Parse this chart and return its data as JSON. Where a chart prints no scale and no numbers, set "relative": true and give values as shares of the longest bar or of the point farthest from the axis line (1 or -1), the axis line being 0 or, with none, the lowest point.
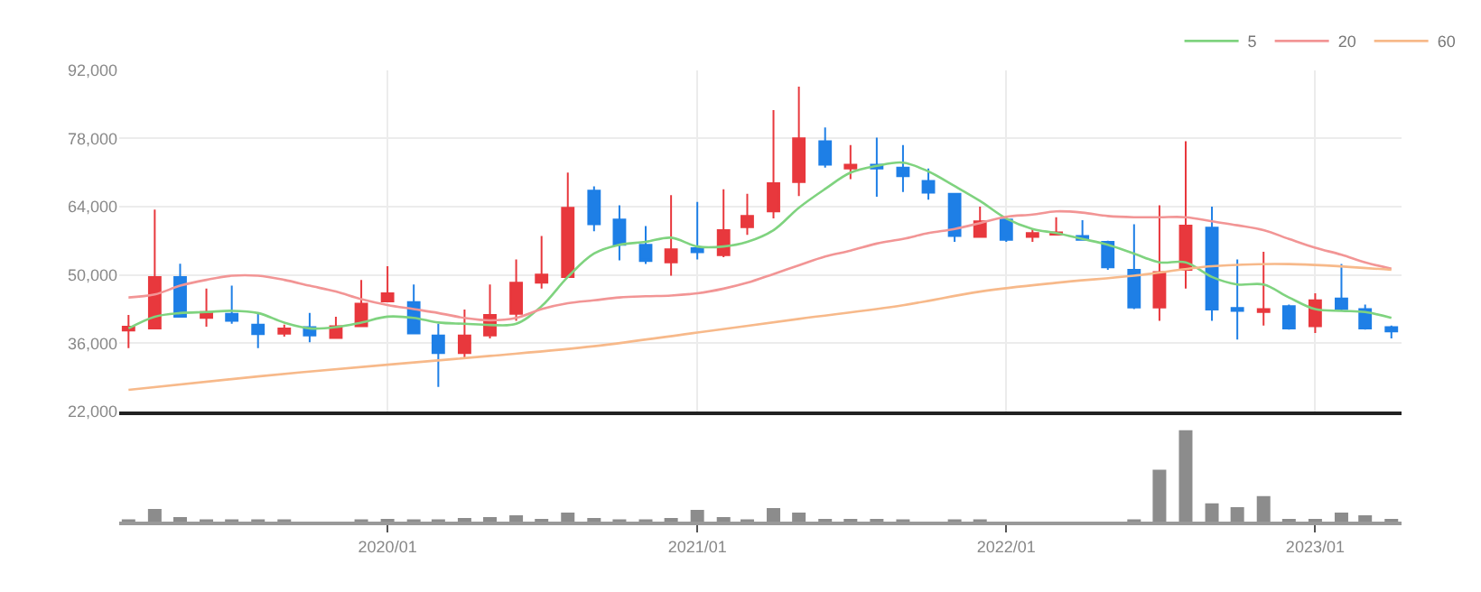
{
  "chart_data": [
    {
      "type": "candlestick",
      "x": [
        "2019-03",
        "2019-04",
        "2019-05",
        "2019-06",
        "2019-07",
        "2019-08",
        "2019-09",
        "2019-10",
        "2019-11",
        "2019-12",
        "2020-01",
        "2020-02",
        "2020-03",
        "2020-04",
        "2020-05",
        "2020-06",
        "2020-07",
        "2020-08",
        "2020-09",
        "2020-10",
        "2020-11",
        "2020-12",
        "2021-01",
        "2021-02",
        "2021-03",
        "2021-04",
        "2021-05",
        "2021-06",
        "2021-07",
        "2021-08",
        "2021-09",
        "2021-10",
        "2021-11",
        "2021-12",
        "2022-01",
        "2022-02",
        "2022-03",
        "2022-04",
        "2022-05",
        "2022-06",
        "2022-07",
        "2022-08",
        "2022-09",
        "2022-10",
        "2022-11",
        "2022-12",
        "2023-01",
        "2023-02",
        "2023-03",
        "2023-04"
      ],
      "ohlc": [
        [
          38600,
          41800,
          35000,
          39400
        ],
        [
          39050,
          63400,
          39050,
          49600
        ],
        [
          49600,
          52300,
          41450,
          41450
        ],
        [
          41200,
          47200,
          39400,
          42400
        ],
        [
          42050,
          47800,
          40000,
          40600
        ],
        [
          39800,
          42200,
          35000,
          37850
        ],
        [
          37950,
          39800,
          37350,
          39050
        ],
        [
          39300,
          42200,
          36200,
          37600
        ],
        [
          37100,
          41450,
          36900,
          39500
        ],
        [
          39500,
          49000,
          39300,
          44100
        ],
        [
          44600,
          51800,
          44600,
          46250
        ],
        [
          44450,
          48050,
          38000,
          38000
        ],
        [
          37600,
          40000,
          27050,
          34000
        ],
        [
          34000,
          42900,
          32800,
          37600
        ],
        [
          37600,
          48050,
          37000,
          41800
        ],
        [
          42050,
          53200,
          40600,
          48400
        ],
        [
          48400,
          58000,
          47200,
          50100
        ],
        [
          49600,
          71000,
          49600,
          63800
        ],
        [
          67300,
          68200,
          59000,
          60400
        ],
        [
          61400,
          64300,
          53000,
          56200
        ],
        [
          56200,
          60050,
          52250,
          52850
        ],
        [
          52600,
          66400,
          49850,
          55250
        ],
        [
          55500,
          65000,
          53200,
          54650
        ],
        [
          54050,
          67600,
          53650,
          59200
        ],
        [
          59800,
          66650,
          58250,
          62100
        ],
        [
          63050,
          83850,
          61600,
          68850
        ],
        [
          69050,
          88650,
          66200,
          78050
        ],
        [
          77450,
          80250,
          72050,
          72650
        ],
        [
          71850,
          76650,
          69650,
          72650
        ],
        [
          72650,
          78200,
          66050,
          71850
        ],
        [
          72050,
          76650,
          67050,
          70250
        ],
        [
          69300,
          71850,
          65450,
          66900
        ],
        [
          66650,
          66650,
          56800,
          58000
        ],
        [
          57800,
          64000,
          57800,
          61000
        ],
        [
          61400,
          61600,
          56800,
          57200
        ],
        [
          57800,
          59500,
          56800,
          58600
        ],
        [
          58300,
          61850,
          58250,
          58750
        ],
        [
          58000,
          61250,
          57200,
          57200
        ],
        [
          56800,
          57050,
          51050,
          51550
        ],
        [
          51050,
          60400,
          43000,
          43350
        ],
        [
          43350,
          64300,
          40600,
          50600
        ],
        [
          51050,
          77450,
          47200,
          60150
        ],
        [
          59700,
          64000,
          40600,
          42900
        ],
        [
          43250,
          53200,
          36750,
          42650
        ],
        [
          42400,
          54750,
          39650,
          43000
        ],
        [
          43600,
          43950,
          38800,
          39050
        ],
        [
          39500,
          46250,
          38100,
          44800
        ],
        [
          45200,
          52250,
          42650,
          43000
        ],
        [
          43000,
          43950,
          38800,
          39050
        ],
        [
          39300,
          39650,
          37000,
          38450
        ]
      ],
      "colors": [
        "#e8383d",
        "#e8383d",
        "#1e7fe6",
        "#e8383d",
        "#1e7fe6",
        "#1e7fe6",
        "#e8383d",
        "#1e7fe6",
        "#e8383d",
        "#e8383d",
        "#e8383d",
        "#1e7fe6",
        "#1e7fe6",
        "#e8383d",
        "#e8383d",
        "#e8383d",
        "#e8383d",
        "#e8383d",
        "#1e7fe6",
        "#1e7fe6",
        "#1e7fe6",
        "#e8383d",
        "#1e7fe6",
        "#e8383d",
        "#e8383d",
        "#e8383d",
        "#e8383d",
        "#1e7fe6",
        "#e8383d",
        "#1e7fe6",
        "#1e7fe6",
        "#1e7fe6",
        "#1e7fe6",
        "#e8383d",
        "#1e7fe6",
        "#e8383d",
        "#e8383d",
        "#1e7fe6",
        "#1e7fe6",
        "#1e7fe6",
        "#e8383d",
        "#e8383d",
        "#1e7fe6",
        "#1e7fe6",
        "#e8383d",
        "#1e7fe6",
        "#e8383d",
        "#1e7fe6",
        "#1e7fe6",
        "#1e7fe6"
      ],
      "series": [
        {
          "type": "line",
          "name": "5",
          "color": "#7fd37f",
          "values": [
            39050,
            41450,
            42200,
            42400,
            42650,
            42200,
            40250,
            39050,
            39300,
            40250,
            41450,
            41200,
            40250,
            40000,
            39750,
            40000,
            43600,
            49600,
            54400,
            56200,
            56800,
            57650,
            55850,
            55850,
            56800,
            59200,
            63800,
            67650,
            71000,
            72400,
            73050,
            71250,
            68250,
            65200,
            61600,
            59450,
            58600,
            57400,
            56200,
            54400,
            52600,
            52600,
            49600,
            48050,
            48050,
            45400,
            43000,
            42650,
            42400,
            41200
          ]
        },
        {
          "type": "line",
          "name": "20",
          "color": "#f29595",
          "values": [
            45400,
            46000,
            47800,
            49000,
            49850,
            49850,
            49000,
            47800,
            46600,
            45050,
            43850,
            43000,
            42200,
            41200,
            40700,
            41200,
            43000,
            44200,
            44800,
            45400,
            45650,
            45800,
            46250,
            47200,
            48400,
            50200,
            52000,
            53800,
            55000,
            56450,
            57400,
            58600,
            59450,
            60650,
            61950,
            62400,
            63050,
            62800,
            62100,
            61850,
            61850,
            61850,
            61000,
            60200,
            59200,
            57400,
            55600,
            54150,
            52600,
            51300
          ]
        },
        {
          "type": "line",
          "name": "60",
          "color": "#f7b98a",
          "x": [
            "2019-03",
            "2019-08",
            "2020-01",
            "2020-05",
            "2020-09",
            "2021-01",
            "2021-05",
            "2021-09",
            "2021-12",
            "2022-03",
            "2022-06",
            "2022-09",
            "2022-12",
            "2023-04"
          ],
          "values": [
            26450,
            29200,
            31600,
            33400,
            35400,
            38200,
            41000,
            43800,
            46600,
            48400,
            49850,
            51800,
            52250,
            51050
          ]
        }
      ],
      "xlim": [
        "2019-02-18",
        "2023-04-13"
      ],
      "xticks": [
        {
          "value": "2020-01",
          "label": null
        },
        {
          "value": "2021-01",
          "label": null
        },
        {
          "value": "2022-01",
          "label": null
        },
        {
          "value": "2023-01",
          "label": null
        }
      ],
      "ylim": [
        22000,
        92000
      ],
      "yticks": [
        {
          "value": 22000,
          "label": "22,000"
        },
        {
          "value": 36000,
          "label": "36,000"
        },
        {
          "value": 50000,
          "label": "50,000"
        },
        {
          "value": 64000,
          "label": "64,000"
        },
        {
          "value": 78000,
          "label": "78,000"
        },
        {
          "value": 92000,
          "label": "92,000"
        }
      ],
      "grid": true,
      "legend": "top right",
      "tick_labels": "y"
    },
    {
      "type": "bar",
      "relative": true,
      "color": "#8c8c8c",
      "x": [
        "2019-03",
        "2019-04",
        "2019-05",
        "2019-06",
        "2019-07",
        "2019-08",
        "2019-09",
        "2019-10",
        "2019-11",
        "2019-12",
        "2020-01",
        "2020-02",
        "2020-03",
        "2020-04",
        "2020-05",
        "2020-06",
        "2020-07",
        "2020-08",
        "2020-09",
        "2020-10",
        "2020-11",
        "2020-12",
        "2021-01",
        "2021-02",
        "2021-03",
        "2021-04",
        "2021-05",
        "2021-06",
        "2021-07",
        "2021-08",
        "2021-09",
        "2021-10",
        "2021-11",
        "2021-12",
        "2022-01",
        "2022-02",
        "2022-03",
        "2022-04",
        "2022-05",
        "2022-06",
        "2022-07",
        "2022-08",
        "2022-09",
        "2022-10",
        "2022-11",
        "2022-12",
        "2023-01",
        "2023-02",
        "2023-03",
        "2023-04"
      ],
      "values": [
        0.02,
        0.14,
        0.05,
        0.02,
        0.02,
        0.02,
        0.02,
        null,
        null,
        0.02,
        0.03,
        0.02,
        0.02,
        0.04,
        0.05,
        0.07,
        0.03,
        0.1,
        0.04,
        0.02,
        0.02,
        0.04,
        0.13,
        0.05,
        0.02,
        0.15,
        0.1,
        0.03,
        0.03,
        0.03,
        0.02,
        null,
        0.02,
        0.02,
        null,
        null,
        null,
        null,
        null,
        0.02,
        0.57,
        1.0,
        0.2,
        0.16,
        0.28,
        0.03,
        0.03,
        0.1,
        0.07,
        0.03
      ],
      "xlim": [
        "2019-02-18",
        "2023-04-13"
      ],
      "xticks": [
        {
          "value": "2020-01",
          "label": "2020/01"
        },
        {
          "value": "2021-01",
          "label": "2021/01"
        },
        {
          "value": "2022-01",
          "label": "2022/01"
        },
        {
          "value": "2023-01",
          "label": "2023/01"
        }
      ],
      "grid": false,
      "tick_labels": "x"
    }
  ]
}
